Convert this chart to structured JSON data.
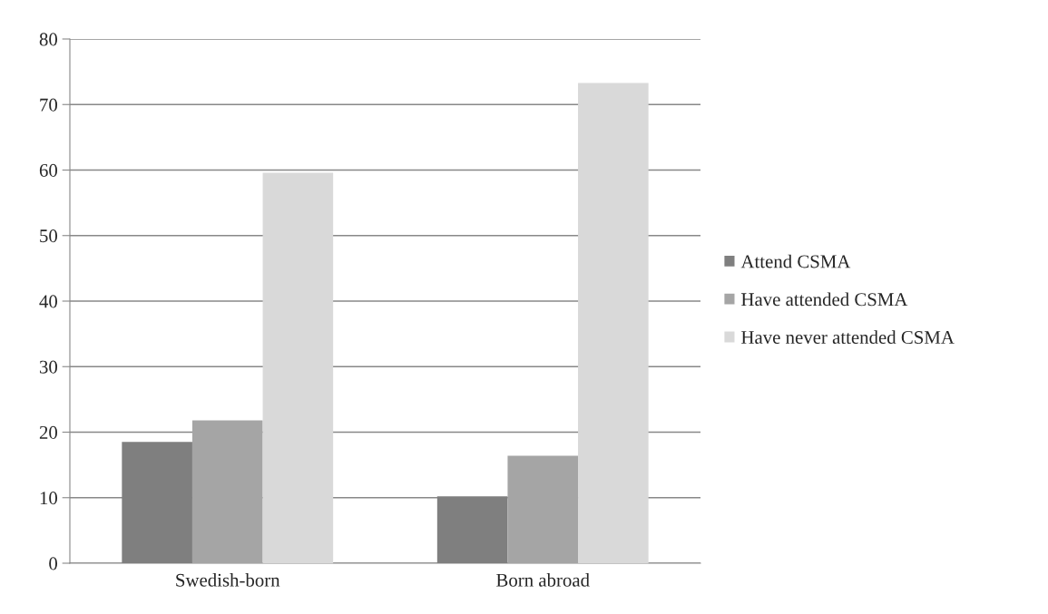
{
  "chart_data": {
    "type": "bar",
    "categories": [
      "Swedish-born",
      "Born abroad"
    ],
    "series": [
      {
        "name": "Attend CSMA",
        "color": "#7f7f7f",
        "values": [
          18.5,
          10.2
        ]
      },
      {
        "name": "Have attended CSMA",
        "color": "#a5a5a5",
        "values": [
          21.8,
          16.4
        ]
      },
      {
        "name": "Have never attended CSMA",
        "color": "#d9d9d9",
        "values": [
          59.6,
          73.3
        ]
      }
    ],
    "ylim": [
      0,
      80
    ],
    "yticks": [
      0,
      10,
      20,
      30,
      40,
      50,
      60,
      70,
      80
    ],
    "grid": "y",
    "legend": "right"
  }
}
